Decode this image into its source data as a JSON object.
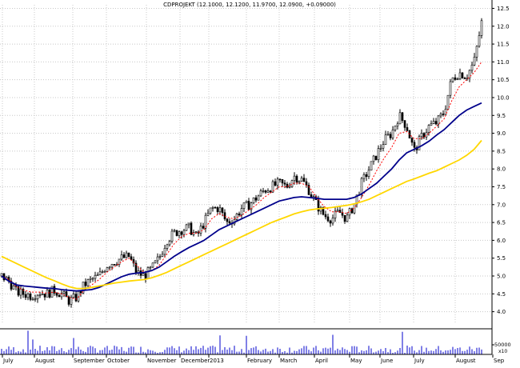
{
  "chart_data": {
    "type": "candlestick",
    "title": "CDPROJEKT (12.1000, 12.1200, 11.9700, 12.0900, +0.09000)",
    "y_ticks": [
      4.0,
      4.5,
      5.0,
      5.5,
      6.0,
      6.5,
      7.0,
      7.5,
      8.0,
      8.5,
      9.0,
      9.5,
      10.0,
      10.5,
      11.0,
      11.5,
      12.0,
      12.5
    ],
    "ylim": [
      3.7,
      12.6
    ],
    "x_labels": [
      "July",
      "August",
      "September",
      "October",
      "November",
      "December",
      "2013",
      "February",
      "March",
      "April",
      "May",
      "June",
      "July",
      "August",
      "Sep"
    ],
    "grid": true,
    "volume_ticks": [
      "50000",
      "x10"
    ],
    "series": [
      {
        "kind": "close",
        "color": "#000000",
        "values": [
          5.0,
          4.85,
          4.55,
          4.5,
          4.45,
          4.55,
          4.5,
          4.6,
          4.5,
          4.3,
          4.4,
          4.75,
          4.9,
          5.0,
          5.3,
          5.4,
          5.5,
          5.55,
          5.1,
          5.0,
          5.2,
          5.5,
          6.0,
          6.2,
          6.3,
          6.35,
          6.1,
          6.5,
          6.9,
          6.9,
          6.5,
          6.6,
          6.9,
          7.0,
          7.2,
          7.4,
          7.5,
          7.6,
          7.5,
          7.8,
          7.7,
          7.4,
          7.0,
          6.7,
          6.6,
          6.8,
          6.6,
          7.0,
          7.6,
          8.0,
          8.4,
          8.8,
          9.0,
          9.5,
          9.2,
          8.5,
          8.9,
          9.2,
          9.3,
          9.6,
          10.5,
          10.7,
          10.6,
          11.0,
          12.1
        ]
      },
      {
        "kind": "ema-short",
        "color": "#ff0000",
        "values": [
          5.0,
          4.9,
          4.7,
          4.6,
          4.55,
          4.55,
          4.52,
          4.55,
          4.5,
          4.4,
          4.35,
          4.6,
          4.75,
          4.9,
          5.1,
          5.25,
          5.4,
          5.5,
          5.3,
          5.1,
          5.15,
          5.3,
          5.6,
          5.9,
          6.1,
          6.2,
          6.2,
          6.3,
          6.6,
          6.75,
          6.65,
          6.6,
          6.7,
          6.85,
          7.0,
          7.2,
          7.35,
          7.5,
          7.5,
          7.6,
          7.6,
          7.5,
          7.2,
          6.95,
          6.8,
          6.8,
          6.75,
          6.9,
          7.2,
          7.55,
          7.95,
          8.3,
          8.6,
          9.0,
          9.05,
          8.85,
          8.85,
          9.0,
          9.2,
          9.4,
          9.9,
          10.3,
          10.5,
          10.7,
          11.0
        ]
      },
      {
        "kind": "ma-medium",
        "color": "#00008b",
        "values": [
          5.0,
          4.85,
          4.75,
          4.72,
          4.7,
          4.68,
          4.66,
          4.65,
          4.62,
          4.6,
          4.58,
          4.6,
          4.62,
          4.68,
          4.78,
          4.88,
          4.98,
          5.05,
          5.08,
          5.1,
          5.15,
          5.25,
          5.4,
          5.55,
          5.68,
          5.8,
          5.9,
          6.0,
          6.15,
          6.3,
          6.4,
          6.5,
          6.6,
          6.7,
          6.8,
          6.9,
          7.0,
          7.1,
          7.15,
          7.2,
          7.22,
          7.2,
          7.18,
          7.15,
          7.15,
          7.15,
          7.15,
          7.2,
          7.3,
          7.45,
          7.6,
          7.8,
          8.0,
          8.25,
          8.45,
          8.55,
          8.65,
          8.78,
          8.95,
          9.1,
          9.3,
          9.5,
          9.65,
          9.75,
          9.85
        ]
      },
      {
        "kind": "ma-long",
        "color": "#ffd700",
        "values": [
          5.55,
          5.45,
          5.35,
          5.25,
          5.15,
          5.05,
          4.95,
          4.87,
          4.78,
          4.7,
          4.65,
          4.65,
          4.68,
          4.72,
          4.76,
          4.8,
          4.83,
          4.86,
          4.88,
          4.9,
          4.95,
          5.02,
          5.1,
          5.2,
          5.3,
          5.4,
          5.5,
          5.6,
          5.7,
          5.8,
          5.9,
          6.0,
          6.1,
          6.2,
          6.3,
          6.4,
          6.5,
          6.58,
          6.66,
          6.74,
          6.8,
          6.85,
          6.88,
          6.9,
          6.92,
          6.95,
          6.98,
          7.02,
          7.08,
          7.15,
          7.25,
          7.35,
          7.45,
          7.55,
          7.65,
          7.72,
          7.8,
          7.88,
          7.95,
          8.05,
          8.15,
          8.25,
          8.38,
          8.55,
          8.8
        ]
      }
    ]
  }
}
